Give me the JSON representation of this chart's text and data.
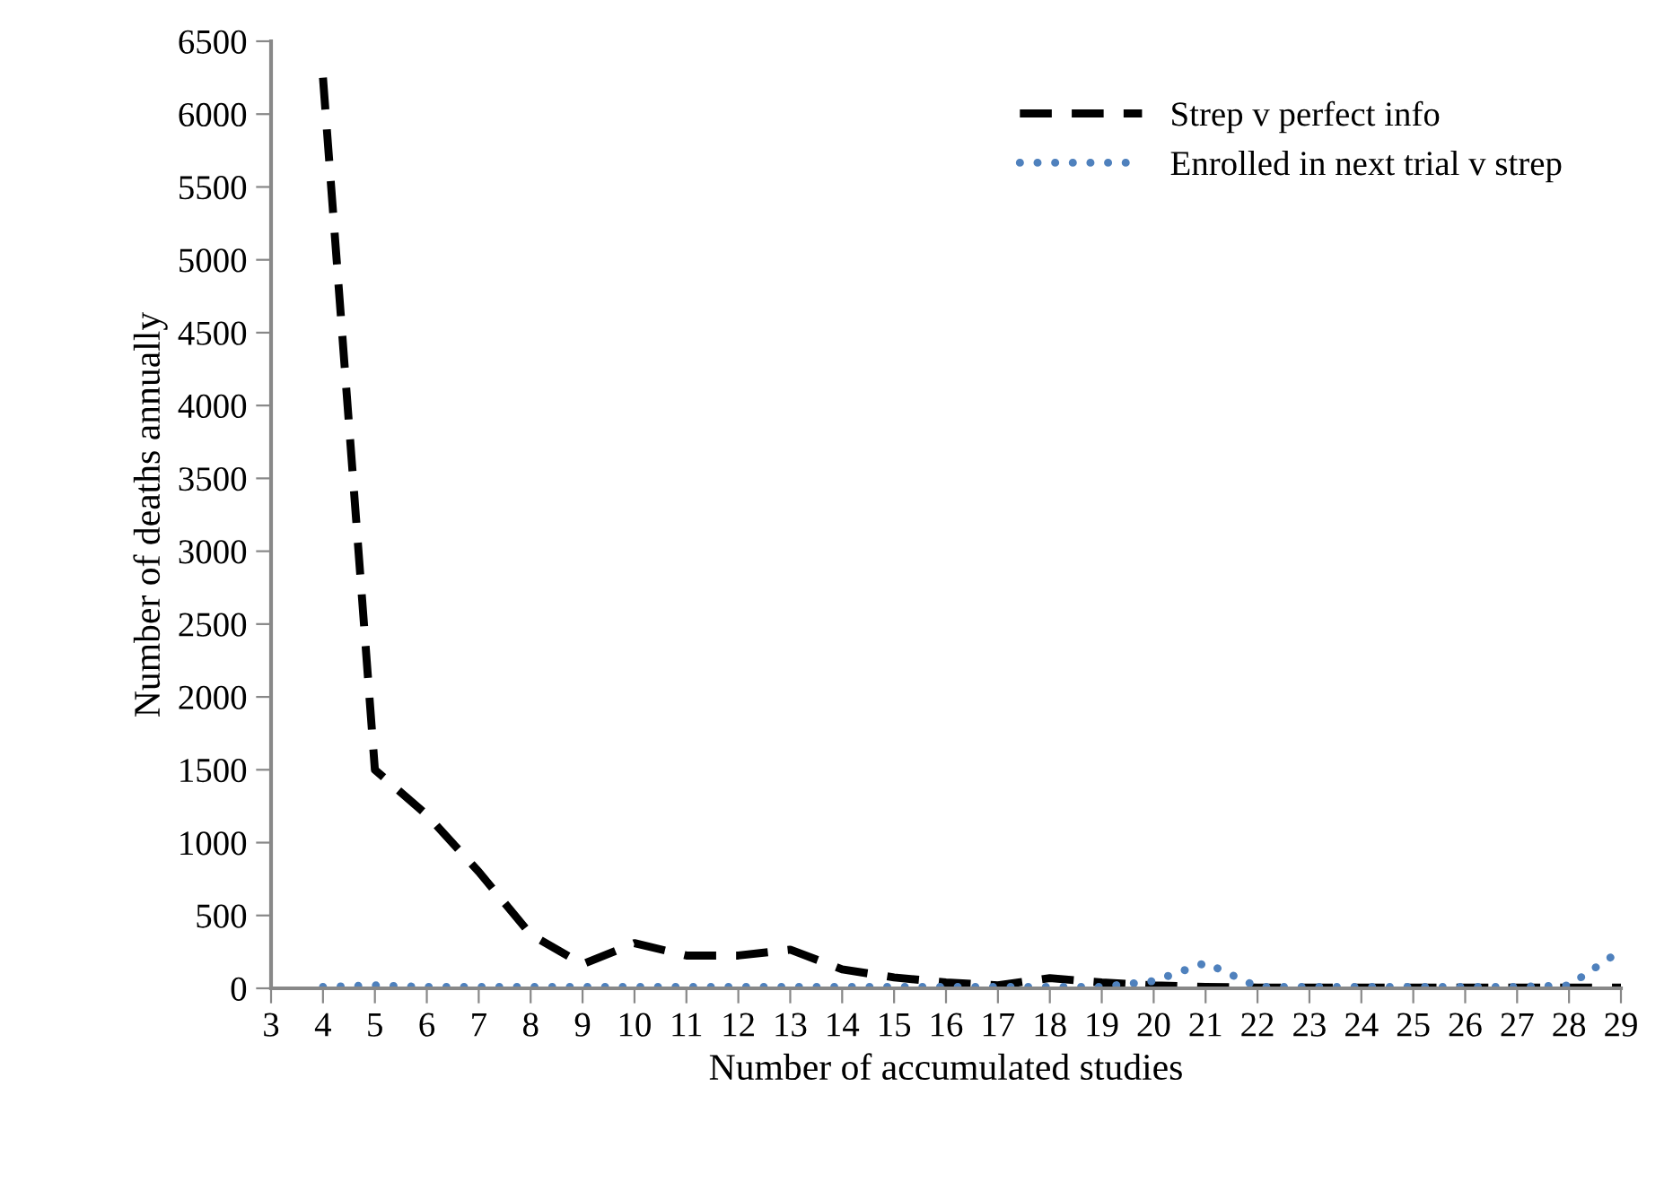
{
  "chart_data": {
    "type": "line",
    "xlabel": "Number of accumulated studies",
    "ylabel": "Number of deaths annually",
    "categories": [
      "3",
      "4",
      "5",
      "6",
      "7",
      "8",
      "9",
      "10",
      "11",
      "12",
      "13",
      "14",
      "15",
      "16",
      "17",
      "18",
      "19",
      "20",
      "21",
      "22",
      "23",
      "24",
      "25",
      "26",
      "27",
      "28",
      "29"
    ],
    "series": [
      {
        "name": "Strep v perfect info",
        "color": "#000000",
        "line_style": "dashed",
        "values": [
          null,
          6250,
          1500,
          1190,
          800,
          370,
          165,
          310,
          225,
          225,
          265,
          130,
          75,
          40,
          20,
          70,
          40,
          20,
          10,
          5,
          5,
          5,
          5,
          5,
          5,
          5,
          5
        ]
      },
      {
        "name": "Enrolled in next trial v strep",
        "color": "#4f81bd",
        "line_style": "dotted",
        "values": [
          null,
          10,
          20,
          10,
          10,
          10,
          10,
          10,
          10,
          10,
          10,
          10,
          10,
          10,
          10,
          10,
          10,
          50,
          175,
          10,
          10,
          10,
          10,
          10,
          10,
          20,
          260
        ]
      }
    ],
    "ylim": [
      0,
      6500
    ],
    "yticks": [
      0,
      500,
      1000,
      1500,
      2000,
      2500,
      3000,
      3500,
      4000,
      4500,
      5000,
      5500,
      6000,
      6500
    ],
    "grid": false,
    "legend": "top right",
    "marker": "none"
  }
}
